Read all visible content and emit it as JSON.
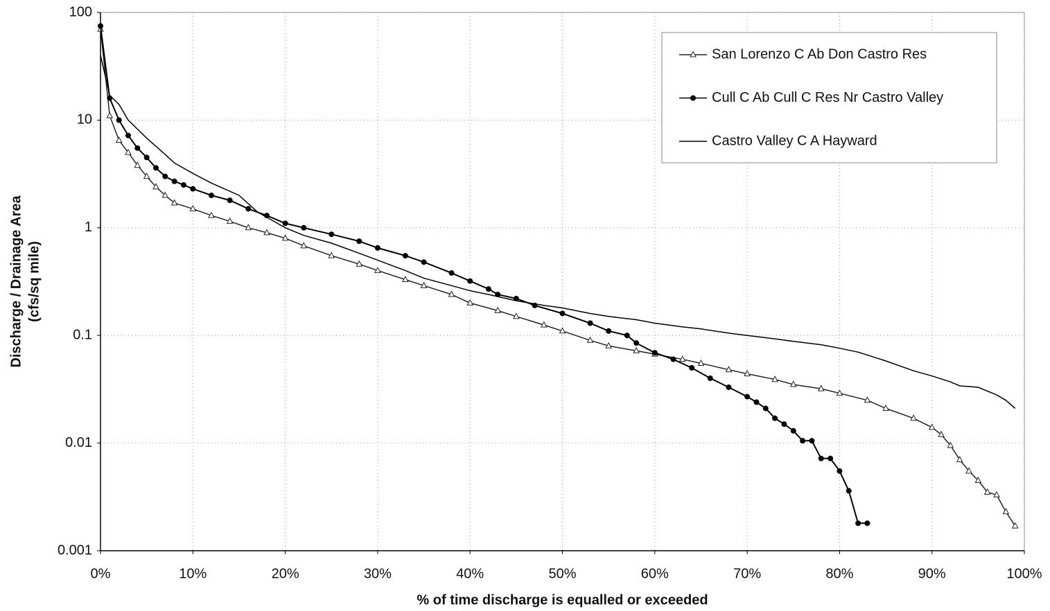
{
  "chart_data": {
    "type": "line",
    "xlabel": "% of time discharge is equalled or exceeded",
    "ylabel": [
      "Discharge / Drainage Area",
      "(cfs/sq mile)"
    ],
    "xlim": [
      0,
      100
    ],
    "xticks": [
      {
        "value": 0,
        "label": "0%"
      },
      {
        "value": 10,
        "label": "10%"
      },
      {
        "value": 20,
        "label": "20%"
      },
      {
        "value": 30,
        "label": "30%"
      },
      {
        "value": 40,
        "label": "40%"
      },
      {
        "value": 50,
        "label": "50%"
      },
      {
        "value": 60,
        "label": "60%"
      },
      {
        "value": 70,
        "label": "70%"
      },
      {
        "value": 80,
        "label": "80%"
      },
      {
        "value": 90,
        "label": "90%"
      },
      {
        "value": 100,
        "label": "100%"
      }
    ],
    "ylim": [
      0.001,
      100
    ],
    "yticks": [
      0.001,
      0.01,
      0.1,
      1,
      10,
      100
    ],
    "yscale": "log",
    "grid": true,
    "legend": "upper right",
    "series": [
      {
        "name": "San Lorenzo C Ab Don Castro Res",
        "color": "#222222",
        "marker": "triangle",
        "x": [
          0,
          1,
          2,
          3,
          4,
          5,
          6,
          7,
          8,
          10,
          12,
          14,
          16,
          18,
          20,
          22,
          25,
          28,
          30,
          33,
          35,
          38,
          40,
          43,
          45,
          48,
          50,
          53,
          55,
          58,
          60,
          63,
          65,
          68,
          70,
          73,
          75,
          78,
          80,
          83,
          85,
          88,
          90,
          91,
          92,
          93,
          94,
          95,
          96,
          97,
          98,
          99
        ],
        "values": [
          70,
          11,
          6.5,
          5,
          3.8,
          3,
          2.4,
          2,
          1.7,
          1.5,
          1.3,
          1.15,
          1.0,
          0.9,
          0.8,
          0.68,
          0.55,
          0.46,
          0.4,
          0.33,
          0.29,
          0.24,
          0.2,
          0.17,
          0.15,
          0.125,
          0.11,
          0.09,
          0.08,
          0.072,
          0.067,
          0.06,
          0.055,
          0.048,
          0.044,
          0.039,
          0.035,
          0.032,
          0.029,
          0.025,
          0.021,
          0.017,
          0.014,
          0.012,
          0.0095,
          0.007,
          0.0055,
          0.0045,
          0.0035,
          0.0033,
          0.0023,
          0.0017
        ]
      },
      {
        "name": "Cull C Ab Cull C Res Nr Castro Valley",
        "color": "#000000",
        "marker": "circle",
        "x": [
          0,
          1,
          2,
          3,
          4,
          5,
          6,
          7,
          8,
          9,
          10,
          12,
          14,
          16,
          18,
          20,
          22,
          25,
          28,
          30,
          33,
          35,
          38,
          40,
          42,
          43,
          45,
          47,
          50,
          53,
          55,
          57,
          58,
          60,
          62,
          64,
          66,
          68,
          70,
          71,
          72,
          73,
          74,
          75,
          76,
          77,
          78,
          79,
          80,
          81,
          82,
          83
        ],
        "values": [
          75,
          16,
          10,
          7.2,
          5.5,
          4.5,
          3.6,
          3,
          2.7,
          2.5,
          2.3,
          2.0,
          1.8,
          1.5,
          1.3,
          1.1,
          1.0,
          0.87,
          0.75,
          0.65,
          0.55,
          0.48,
          0.38,
          0.32,
          0.27,
          0.24,
          0.22,
          0.19,
          0.16,
          0.13,
          0.11,
          0.1,
          0.085,
          0.069,
          0.06,
          0.05,
          0.04,
          0.033,
          0.027,
          0.024,
          0.021,
          0.017,
          0.015,
          0.013,
          0.0105,
          0.0105,
          0.0072,
          0.0072,
          0.0055,
          0.0036,
          0.0018,
          0.0018
        ]
      },
      {
        "name": "Castro Valley C A Hayward",
        "color": "#000000",
        "marker": "none",
        "x": [
          0,
          1,
          2,
          3,
          5,
          7,
          8,
          10,
          12,
          15,
          17,
          20,
          22,
          25,
          28,
          30,
          33,
          35,
          38,
          40,
          42,
          45,
          48,
          50,
          53,
          55,
          58,
          60,
          63,
          65,
          68,
          70,
          73,
          75,
          78,
          80,
          82,
          85,
          88,
          90,
          92,
          93,
          95,
          97,
          98,
          99
        ],
        "values": [
          40,
          17,
          14,
          10,
          6.8,
          4.8,
          4,
          3.2,
          2.6,
          2.0,
          1.4,
          1.0,
          0.85,
          0.72,
          0.58,
          0.5,
          0.4,
          0.34,
          0.29,
          0.26,
          0.24,
          0.21,
          0.19,
          0.18,
          0.16,
          0.15,
          0.14,
          0.13,
          0.12,
          0.115,
          0.105,
          0.1,
          0.093,
          0.088,
          0.082,
          0.076,
          0.07,
          0.058,
          0.047,
          0.042,
          0.037,
          0.034,
          0.033,
          0.028,
          0.025,
          0.021
        ]
      }
    ]
  }
}
